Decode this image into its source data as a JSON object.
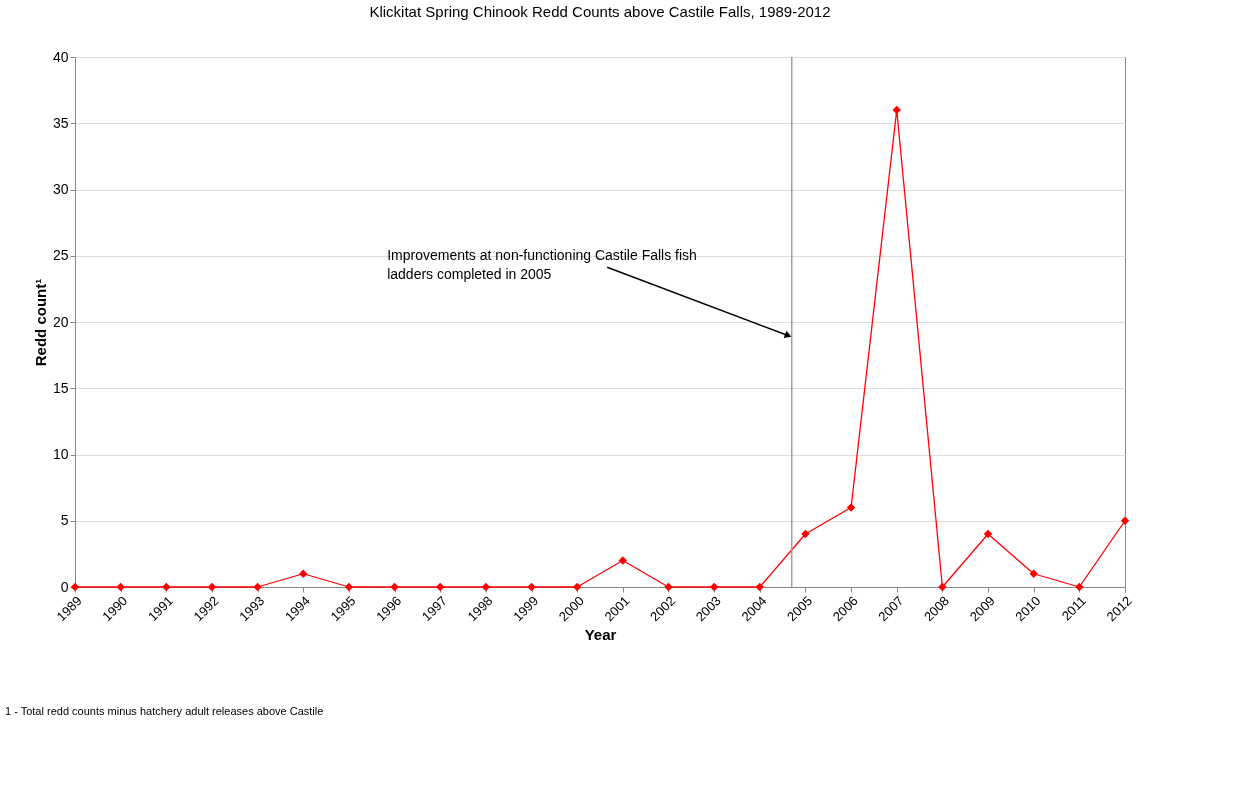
{
  "chart_data": {
    "type": "line",
    "title": "Klickitat Spring Chinook Redd Counts above Castile Falls, 1989-2012",
    "xlabel": "Year",
    "ylabel": "Redd count¹",
    "x": [
      1989,
      1990,
      1991,
      1992,
      1993,
      1994,
      1995,
      1996,
      1997,
      1998,
      1999,
      2000,
      2001,
      2002,
      2003,
      2004,
      2005,
      2006,
      2007,
      2008,
      2009,
      2010,
      2011,
      2012
    ],
    "series": [
      {
        "color": "#ff0000",
        "values": [
          0,
          0,
          0,
          0,
          0,
          1,
          0,
          0,
          0,
          0,
          0,
          0,
          2,
          0,
          0,
          0,
          4,
          6,
          36,
          0,
          4,
          1,
          0,
          5
        ]
      }
    ],
    "xlim": [
      1989,
      2012
    ],
    "xticks": [
      1989,
      1990,
      1991,
      1992,
      1993,
      1994,
      1995,
      1996,
      1997,
      1998,
      1999,
      2000,
      2001,
      2002,
      2003,
      2004,
      2005,
      2006,
      2007,
      2008,
      2009,
      2010,
      2011,
      2012
    ],
    "ylim": [
      0,
      40
    ],
    "yticks": [
      0,
      5,
      10,
      15,
      20,
      25,
      30,
      35,
      40
    ],
    "ref_lines": [
      {
        "axis": "x",
        "value": 2004.7,
        "color": "#a0a0a0"
      }
    ],
    "annotations": [
      {
        "text": "Improvements at non-functioning Castile Falls fish ladders completed in 2005",
        "x": 2004.6,
        "y": 19
      },
      "1 - Total redd counts minus hatchery adult releases above Castile"
    ],
    "grid": "y",
    "marker": "diamond",
    "line_style": "solid"
  }
}
